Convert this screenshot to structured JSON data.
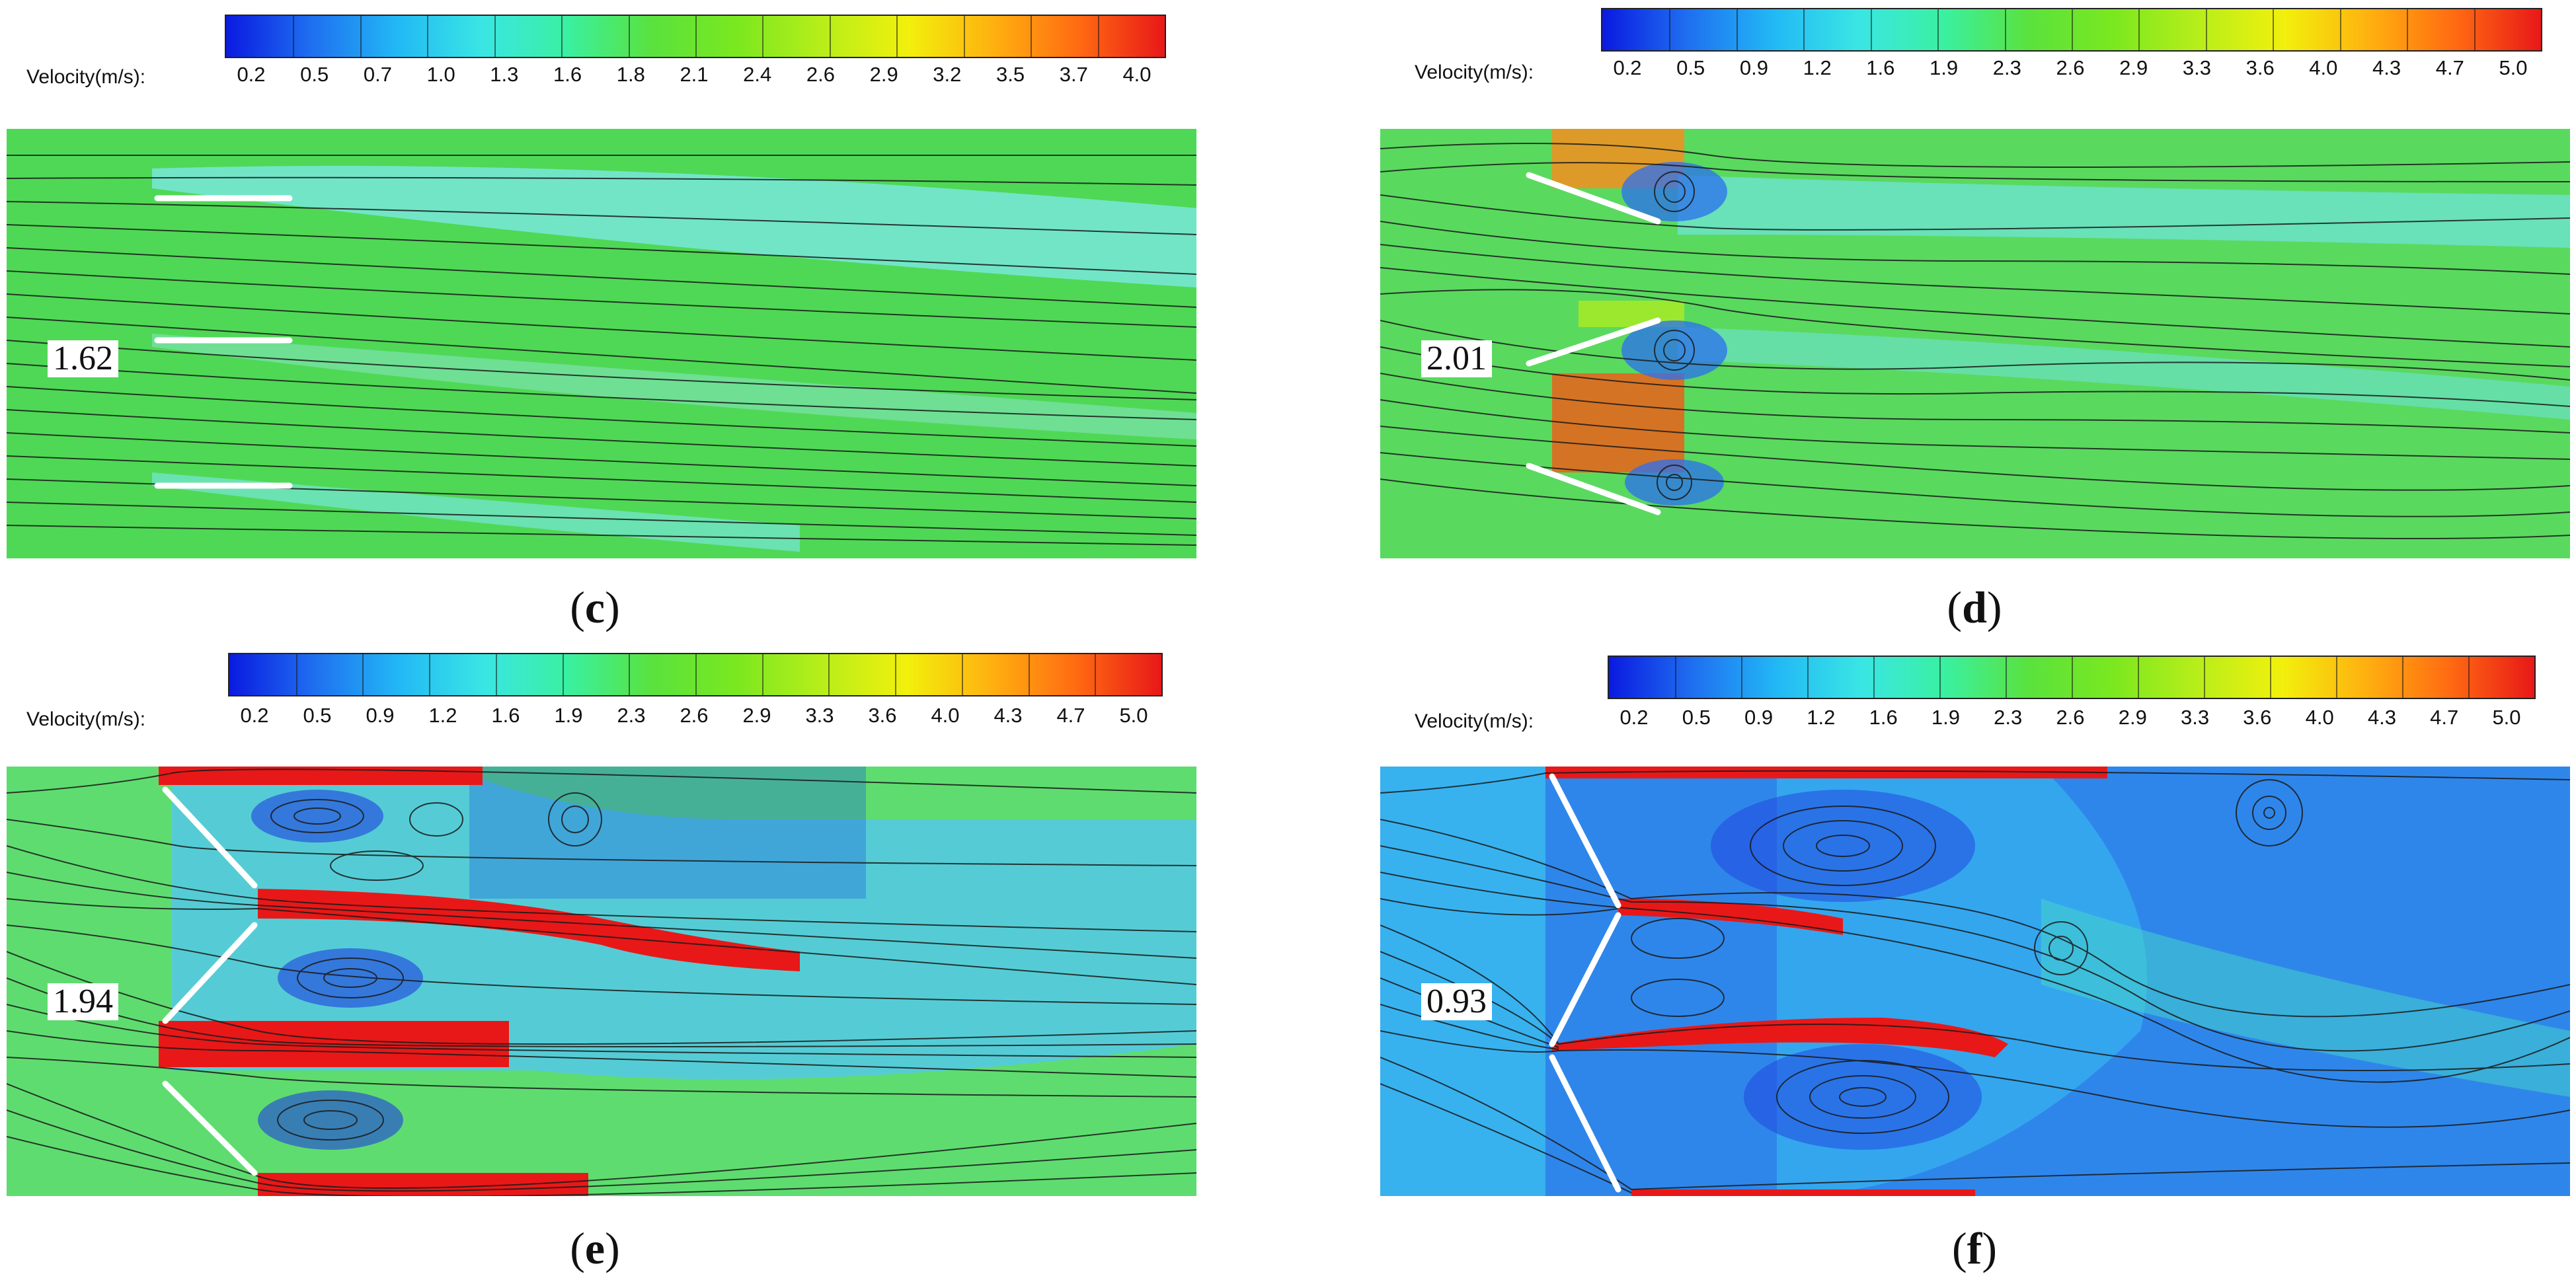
{
  "colorbar_colors": [
    "#0a1ae0",
    "#1f6ff0",
    "#22b8f5",
    "#39e6e4",
    "#3af0a0",
    "#5ae23d",
    "#7be81f",
    "#b8ee1a",
    "#f2f00c",
    "#ffb010",
    "#ff6a12",
    "#e81818"
  ],
  "panels": [
    {
      "id": "c",
      "legend_label": "Velocity(m/s):",
      "ticks": [
        "0.2",
        "0.5",
        "0.7",
        "1.0",
        "1.3",
        "1.6",
        "1.8",
        "2.1",
        "2.4",
        "2.6",
        "2.9",
        "3.2",
        "3.5",
        "3.7",
        "4.0"
      ],
      "value": "1.62",
      "caption_letter": "c",
      "background_color": "#4fd855",
      "wake_color": "#7ee9ee"
    },
    {
      "id": "d",
      "legend_label": "Velocity(m/s):",
      "ticks": [
        "0.2",
        "0.5",
        "0.9",
        "1.2",
        "1.6",
        "1.9",
        "2.3",
        "2.6",
        "2.9",
        "3.3",
        "3.6",
        "4.0",
        "4.3",
        "4.7",
        "5.0"
      ],
      "value": "2.01",
      "caption_letter": "d",
      "background_color": "#5ad95f",
      "wake_color": "#6fe4e0"
    },
    {
      "id": "e",
      "legend_label": "Velocity(m/s):",
      "ticks": [
        "0.2",
        "0.5",
        "0.9",
        "1.2",
        "1.6",
        "1.9",
        "2.3",
        "2.6",
        "2.9",
        "3.3",
        "3.6",
        "4.0",
        "4.3",
        "4.7",
        "5.0"
      ],
      "value": "1.94",
      "caption_letter": "e",
      "background_color": "#5fdc70",
      "wake_color": "#52c8ef"
    },
    {
      "id": "f",
      "legend_label": "Velocity(m/s):",
      "ticks": [
        "0.2",
        "0.5",
        "0.9",
        "1.2",
        "1.6",
        "1.9",
        "2.3",
        "2.6",
        "2.9",
        "3.3",
        "3.6",
        "4.0",
        "4.3",
        "4.7",
        "5.0"
      ],
      "value": "0.93",
      "caption_letter": "f",
      "background_color": "#2f86ea",
      "wake_color": "#39bdf0"
    }
  ]
}
